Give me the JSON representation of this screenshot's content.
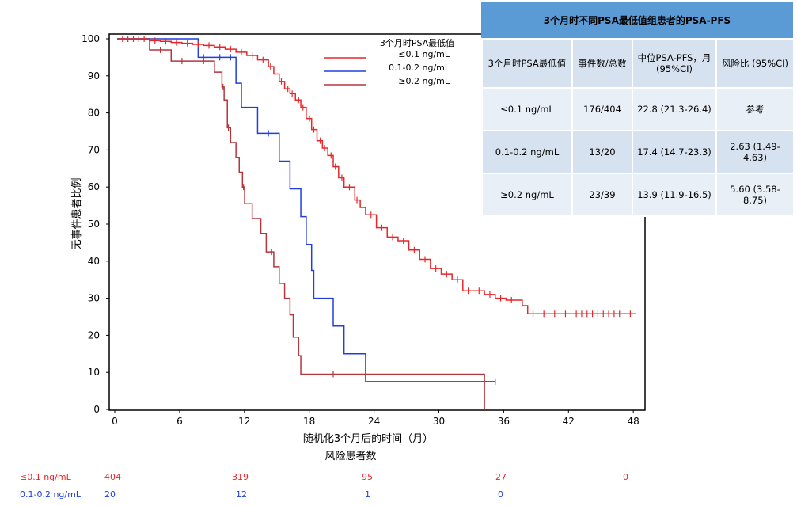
{
  "chart_data": {
    "type": "line",
    "title": "",
    "ylabel": "无事件患者比例",
    "xlabel": "随机化3个月后的时间（月）",
    "xlim": [
      0,
      48
    ],
    "ylim": [
      0,
      100
    ],
    "xticks": [
      0,
      6,
      12,
      18,
      24,
      30,
      36,
      42,
      48
    ],
    "yticks": [
      0,
      10,
      20,
      30,
      40,
      50,
      60,
      70,
      80,
      90,
      100
    ],
    "legend": {
      "title": "3个月时PSA最低值",
      "placement": "top-center"
    },
    "series": [
      {
        "name": "≤0.1 ng/mL",
        "color": "#e8262a",
        "points": [
          [
            0,
            100
          ],
          [
            2,
            100
          ],
          [
            3,
            99.5
          ],
          [
            4,
            99.3
          ],
          [
            5,
            99
          ],
          [
            6,
            98.8
          ],
          [
            7,
            98.5
          ],
          [
            8,
            98.2
          ],
          [
            9,
            97.8
          ],
          [
            10,
            97.2
          ],
          [
            11,
            96.4
          ],
          [
            12,
            95.5
          ],
          [
            13,
            94.3
          ],
          [
            14,
            92.5
          ],
          [
            14.5,
            90.5
          ],
          [
            15,
            88.5
          ],
          [
            15.5,
            86.5
          ],
          [
            16,
            85.2
          ],
          [
            16.5,
            83.5
          ],
          [
            17,
            81.5
          ],
          [
            17.5,
            78.5
          ],
          [
            18,
            75.5
          ],
          [
            18.5,
            72.5
          ],
          [
            19,
            70.5
          ],
          [
            19.5,
            68.5
          ],
          [
            20,
            65.5
          ],
          [
            20.5,
            62.5
          ],
          [
            21,
            60
          ],
          [
            22,
            56.5
          ],
          [
            22.5,
            54.5
          ],
          [
            23,
            52.5
          ],
          [
            24,
            49
          ],
          [
            25,
            46.5
          ],
          [
            26,
            45.5
          ],
          [
            27,
            43
          ],
          [
            28,
            40.5
          ],
          [
            29,
            38
          ],
          [
            30,
            36.5
          ],
          [
            31,
            35
          ],
          [
            32,
            32
          ],
          [
            33,
            32
          ],
          [
            34,
            31
          ],
          [
            35,
            30
          ],
          [
            36,
            29.5
          ],
          [
            37,
            29.5
          ],
          [
            37.5,
            28
          ],
          [
            38,
            25.8
          ],
          [
            48,
            25.8
          ]
        ],
        "censor_marks": [
          0.5,
          1,
          1.5,
          2.5,
          3.5,
          4.5,
          5.5,
          6.5,
          7.5,
          8.5,
          9.5,
          10.5,
          11.5,
          12.5,
          13.5,
          14.2,
          15.2,
          15.8,
          16.2,
          16.8,
          17.2,
          17.8,
          18.2,
          18.8,
          19.2,
          19.8,
          20.2,
          20.8,
          21.5,
          22.2,
          23.5,
          24.5,
          25.5,
          26.5,
          27.5,
          28.5,
          29.5,
          30.5,
          31.5,
          32.5,
          33.5,
          34.5,
          35.5,
          36.5,
          38.5,
          39.5,
          40.5,
          41.5,
          42.5,
          43,
          43.5,
          44,
          44.5,
          45,
          45.5,
          46,
          46.5,
          47.5
        ]
      },
      {
        "name": "0.1-0.2 ng/mL",
        "color": "#1f3fe0",
        "points": [
          [
            0,
            100
          ],
          [
            7.5,
            100
          ],
          [
            7.5,
            95
          ],
          [
            11,
            95
          ],
          [
            11,
            88
          ],
          [
            11.5,
            88
          ],
          [
            11.5,
            81.5
          ],
          [
            13,
            81.5
          ],
          [
            13,
            74.5
          ],
          [
            15,
            74.5
          ],
          [
            15,
            67
          ],
          [
            16,
            67
          ],
          [
            16,
            59.5
          ],
          [
            17,
            59.5
          ],
          [
            17,
            52
          ],
          [
            17.5,
            52
          ],
          [
            17.5,
            44.5
          ],
          [
            18,
            44.5
          ],
          [
            18,
            37.5
          ],
          [
            18.2,
            37.5
          ],
          [
            18.2,
            30
          ],
          [
            20,
            30
          ],
          [
            20,
            22.5
          ],
          [
            21,
            22.5
          ],
          [
            21,
            15
          ],
          [
            23,
            15
          ],
          [
            23,
            7.5
          ],
          [
            35,
            7.5
          ]
        ],
        "censor_marks": [
          8,
          9.5,
          10.5,
          14,
          35
        ]
      },
      {
        "name": "≥0.2 ng/mL",
        "color": "#b5363c",
        "points": [
          [
            0,
            100
          ],
          [
            3,
            100
          ],
          [
            3,
            97
          ],
          [
            5,
            97
          ],
          [
            5,
            94
          ],
          [
            9,
            94
          ],
          [
            9,
            91
          ],
          [
            9.7,
            91
          ],
          [
            9.7,
            87
          ],
          [
            9.9,
            87
          ],
          [
            9.9,
            83.5
          ],
          [
            10.2,
            83.5
          ],
          [
            10.2,
            76
          ],
          [
            10.5,
            76
          ],
          [
            10.5,
            72
          ],
          [
            11,
            72
          ],
          [
            11,
            68
          ],
          [
            11.3,
            68
          ],
          [
            11.3,
            64
          ],
          [
            11.6,
            64
          ],
          [
            11.6,
            60
          ],
          [
            11.8,
            60
          ],
          [
            11.8,
            55.5
          ],
          [
            12.5,
            55.5
          ],
          [
            12.5,
            51.5
          ],
          [
            13.3,
            51.5
          ],
          [
            13.3,
            47.5
          ],
          [
            13.8,
            47.5
          ],
          [
            13.8,
            42.5
          ],
          [
            14.5,
            42.5
          ],
          [
            14.5,
            38.5
          ],
          [
            15,
            38.5
          ],
          [
            15,
            34
          ],
          [
            15.5,
            34
          ],
          [
            15.5,
            30
          ],
          [
            16,
            30
          ],
          [
            16,
            25.5
          ],
          [
            16.3,
            25.5
          ],
          [
            16.3,
            19.5
          ],
          [
            16.8,
            19.5
          ],
          [
            16.8,
            14.5
          ],
          [
            17,
            14.5
          ],
          [
            17,
            9.5
          ],
          [
            34,
            9.5
          ],
          [
            34,
            0
          ]
        ],
        "censor_marks": [
          2,
          4,
          6,
          8,
          9.8,
          10.3,
          11.7,
          14.3,
          20
        ]
      }
    ]
  },
  "table": {
    "title": "3个月时不同PSA最低值组患者的PSA-PFS",
    "headers": [
      "3个月时PSA最低值",
      "事件数/总数",
      "中位PSA-PFS，月(95%CI)",
      "风险比 (95%CI)"
    ],
    "rows": [
      [
        "≤0.1 ng/mL",
        "176/404",
        "22.8 (21.3-26.4)",
        "参考"
      ],
      [
        "0.1-0.2 ng/mL",
        "13/20",
        "17.4 (14.7-23.3)",
        "2.63 (1.49-4.63)"
      ],
      [
        "≥0.2 ng/mL",
        "23/39",
        "13.9 (11.9-16.5)",
        "5.60 (3.58-8.75)"
      ]
    ]
  },
  "risk_table": {
    "title": "风险患者数",
    "rows": [
      {
        "label": "≤0.1 ng/mL",
        "color": "#e8262a",
        "values": [
          "404",
          "319",
          "95",
          "27",
          "0"
        ]
      },
      {
        "label": "0.1-0.2 ng/mL",
        "color": "#1f3fe0",
        "values": [
          "20",
          "12",
          "1",
          "0"
        ]
      }
    ]
  }
}
